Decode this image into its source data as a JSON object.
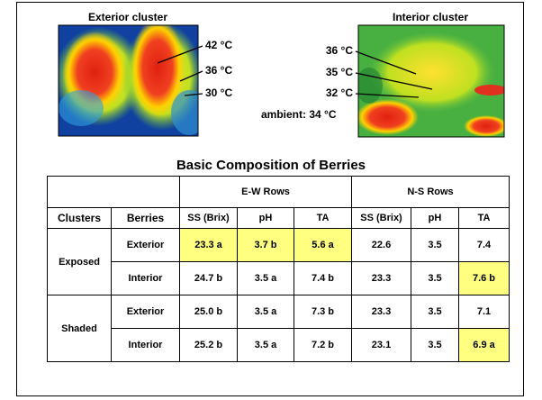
{
  "images": {
    "exterior": {
      "title": "Exterior cluster",
      "labels": [
        "42 °C",
        "36 °C",
        "30 °C"
      ]
    },
    "interior": {
      "title": "Interior cluster",
      "labels": [
        "36 °C",
        "35 °C",
        "32 °C"
      ]
    },
    "ambient": "ambient: 34 °C"
  },
  "table": {
    "title": "Basic Composition of Berries",
    "group_headers": [
      "E-W Rows",
      "N-S Rows"
    ],
    "columns": [
      "Clusters",
      "Berries",
      "SS (Brix)",
      "pH",
      "TA",
      "SS (Brix)",
      "pH",
      "TA"
    ],
    "highlight_color": "#ffff80",
    "groups": [
      {
        "cluster": "Exposed",
        "rows": [
          {
            "berries": "Exterior",
            "cells": [
              "23.3 a",
              "3.7 b",
              "5.6 a",
              "22.6",
              "3.5",
              "7.4"
            ],
            "highlight": [
              true,
              true,
              true,
              false,
              false,
              false
            ]
          },
          {
            "berries": "Interior",
            "cells": [
              "24.7 b",
              "3.5 a",
              "7.4 b",
              "23.3",
              "3.5",
              "7.6 b"
            ],
            "highlight": [
              false,
              false,
              false,
              false,
              false,
              true
            ]
          }
        ]
      },
      {
        "cluster": "Shaded",
        "rows": [
          {
            "berries": "Exterior",
            "cells": [
              "25.0 b",
              "3.5 a",
              "7.3 b",
              "23.3",
              "3.5",
              "7.1"
            ],
            "highlight": [
              false,
              false,
              false,
              false,
              false,
              false
            ]
          },
          {
            "berries": "Interior",
            "cells": [
              "25.2 b",
              "3.5 a",
              "7.2 b",
              "23.1",
              "3.5",
              "6.9 a"
            ],
            "highlight": [
              false,
              false,
              false,
              false,
              false,
              true
            ]
          }
        ]
      }
    ]
  }
}
